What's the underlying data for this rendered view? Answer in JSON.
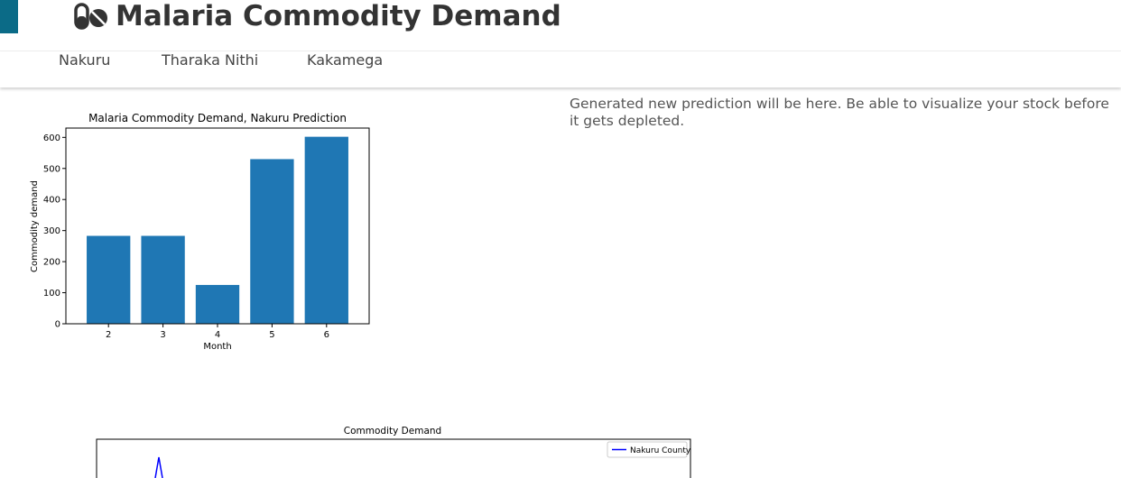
{
  "header": {
    "title": "Malaria Commodity Demand",
    "icon": "pills-icon",
    "accent_color": "#0b6b87"
  },
  "nav": {
    "items": [
      {
        "label": "Nakuru"
      },
      {
        "label": "Tharaka Nithi"
      },
      {
        "label": "Kakamega"
      }
    ]
  },
  "prediction_text": "Generated new prediction will be here. Be able to visualize your stock before it gets depleted.",
  "chart_data": [
    {
      "type": "bar",
      "title": "Malaria Commodity Demand, Nakuru Prediction",
      "xlabel": "Month",
      "ylabel": "Commodity demand",
      "categories": [
        "2",
        "3",
        "4",
        "5",
        "6"
      ],
      "values": [
        283,
        283,
        125,
        530,
        602
      ],
      "ylim": [
        0,
        630
      ],
      "yticks": [
        "0",
        "100",
        "200",
        "300",
        "400",
        "500",
        "600"
      ],
      "color": "#1f77b4"
    },
    {
      "type": "line",
      "title": "Commodity Demand",
      "legend": "top-right",
      "series": [
        {
          "name": "Nakuru County",
          "color": "#0000ff"
        }
      ]
    }
  ]
}
